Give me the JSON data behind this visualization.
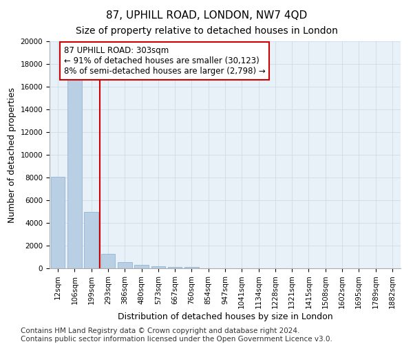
{
  "title": "87, UPHILL ROAD, LONDON, NW7 4QD",
  "subtitle": "Size of property relative to detached houses in London",
  "xlabel": "Distribution of detached houses by size in London",
  "ylabel": "Number of detached properties",
  "categories": [
    "12sqm",
    "106sqm",
    "199sqm",
    "293sqm",
    "386sqm",
    "480sqm",
    "573sqm",
    "667sqm",
    "760sqm",
    "854sqm",
    "947sqm",
    "1041sqm",
    "1134sqm",
    "1228sqm",
    "1321sqm",
    "1415sqm",
    "1508sqm",
    "1602sqm",
    "1695sqm",
    "1789sqm",
    "1882sqm"
  ],
  "values": [
    8050,
    16600,
    5000,
    1250,
    550,
    280,
    200,
    150,
    100,
    0,
    0,
    0,
    0,
    0,
    0,
    0,
    0,
    0,
    0,
    0,
    0
  ],
  "bar_color": "#b8cfe4",
  "bar_edge_color": "#8aabcc",
  "highlight_color": "#cc0000",
  "annotation_text": "87 UPHILL ROAD: 303sqm\n← 91% of detached houses are smaller (30,123)\n8% of semi-detached houses are larger (2,798) →",
  "annotation_box_color": "#ffffff",
  "annotation_box_edge_color": "#cc0000",
  "vline_x": 2.5,
  "ylim": [
    0,
    20000
  ],
  "yticks": [
    0,
    2000,
    4000,
    6000,
    8000,
    10000,
    12000,
    14000,
    16000,
    18000,
    20000
  ],
  "grid_color": "#c8d8e8",
  "plot_bg_color": "#e8f0f8",
  "footnote": "Contains HM Land Registry data © Crown copyright and database right 2024.\nContains public sector information licensed under the Open Government Licence v3.0.",
  "title_fontsize": 11,
  "subtitle_fontsize": 10,
  "xlabel_fontsize": 9,
  "ylabel_fontsize": 9,
  "tick_fontsize": 7.5,
  "annotation_fontsize": 8.5,
  "footnote_fontsize": 7.5
}
